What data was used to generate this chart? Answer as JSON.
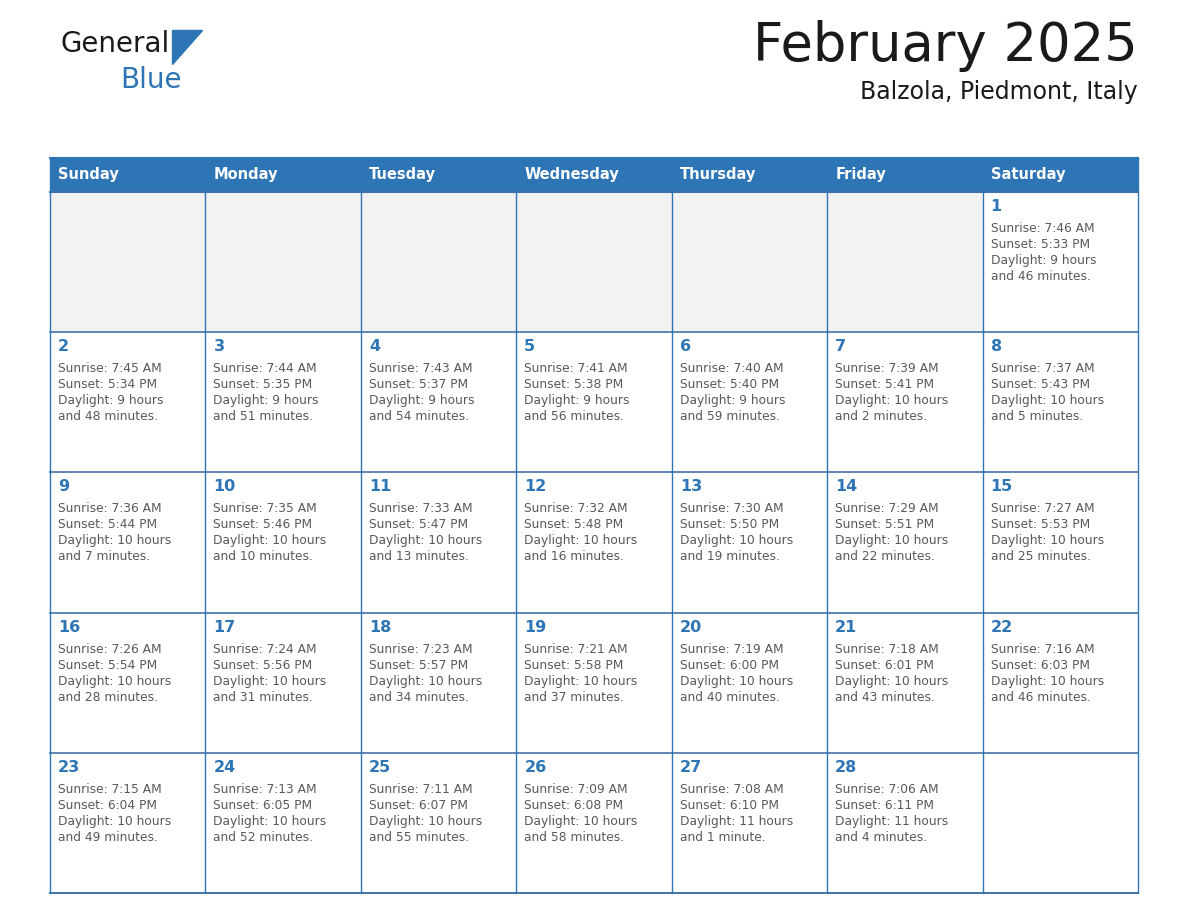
{
  "title": "February 2025",
  "subtitle": "Balzola, Piedmont, Italy",
  "header_bg": "#2E75B6",
  "header_text_color": "#FFFFFF",
  "days_of_week": [
    "Sunday",
    "Monday",
    "Tuesday",
    "Wednesday",
    "Thursday",
    "Friday",
    "Saturday"
  ],
  "cell_bg": "#FFFFFF",
  "border_color": "#2E75B6",
  "row_border_color": "#4472A8",
  "day_number_color": "#2E75B6",
  "info_text_color": "#595959",
  "logo_general_color": "#1A1A1A",
  "logo_blue_color": "#2E75B6",
  "calendar": [
    [
      null,
      null,
      null,
      null,
      null,
      null,
      {
        "day": 1,
        "sunrise": "7:46 AM",
        "sunset": "5:33 PM",
        "daylight": "9 hours and 46 minutes."
      }
    ],
    [
      {
        "day": 2,
        "sunrise": "7:45 AM",
        "sunset": "5:34 PM",
        "daylight": "9 hours and 48 minutes."
      },
      {
        "day": 3,
        "sunrise": "7:44 AM",
        "sunset": "5:35 PM",
        "daylight": "9 hours and 51 minutes."
      },
      {
        "day": 4,
        "sunrise": "7:43 AM",
        "sunset": "5:37 PM",
        "daylight": "9 hours and 54 minutes."
      },
      {
        "day": 5,
        "sunrise": "7:41 AM",
        "sunset": "5:38 PM",
        "daylight": "9 hours and 56 minutes."
      },
      {
        "day": 6,
        "sunrise": "7:40 AM",
        "sunset": "5:40 PM",
        "daylight": "9 hours and 59 minutes."
      },
      {
        "day": 7,
        "sunrise": "7:39 AM",
        "sunset": "5:41 PM",
        "daylight": "10 hours and 2 minutes."
      },
      {
        "day": 8,
        "sunrise": "7:37 AM",
        "sunset": "5:43 PM",
        "daylight": "10 hours and 5 minutes."
      }
    ],
    [
      {
        "day": 9,
        "sunrise": "7:36 AM",
        "sunset": "5:44 PM",
        "daylight": "10 hours and 7 minutes."
      },
      {
        "day": 10,
        "sunrise": "7:35 AM",
        "sunset": "5:46 PM",
        "daylight": "10 hours and 10 minutes."
      },
      {
        "day": 11,
        "sunrise": "7:33 AM",
        "sunset": "5:47 PM",
        "daylight": "10 hours and 13 minutes."
      },
      {
        "day": 12,
        "sunrise": "7:32 AM",
        "sunset": "5:48 PM",
        "daylight": "10 hours and 16 minutes."
      },
      {
        "day": 13,
        "sunrise": "7:30 AM",
        "sunset": "5:50 PM",
        "daylight": "10 hours and 19 minutes."
      },
      {
        "day": 14,
        "sunrise": "7:29 AM",
        "sunset": "5:51 PM",
        "daylight": "10 hours and 22 minutes."
      },
      {
        "day": 15,
        "sunrise": "7:27 AM",
        "sunset": "5:53 PM",
        "daylight": "10 hours and 25 minutes."
      }
    ],
    [
      {
        "day": 16,
        "sunrise": "7:26 AM",
        "sunset": "5:54 PM",
        "daylight": "10 hours and 28 minutes."
      },
      {
        "day": 17,
        "sunrise": "7:24 AM",
        "sunset": "5:56 PM",
        "daylight": "10 hours and 31 minutes."
      },
      {
        "day": 18,
        "sunrise": "7:23 AM",
        "sunset": "5:57 PM",
        "daylight": "10 hours and 34 minutes."
      },
      {
        "day": 19,
        "sunrise": "7:21 AM",
        "sunset": "5:58 PM",
        "daylight": "10 hours and 37 minutes."
      },
      {
        "day": 20,
        "sunrise": "7:19 AM",
        "sunset": "6:00 PM",
        "daylight": "10 hours and 40 minutes."
      },
      {
        "day": 21,
        "sunrise": "7:18 AM",
        "sunset": "6:01 PM",
        "daylight": "10 hours and 43 minutes."
      },
      {
        "day": 22,
        "sunrise": "7:16 AM",
        "sunset": "6:03 PM",
        "daylight": "10 hours and 46 minutes."
      }
    ],
    [
      {
        "day": 23,
        "sunrise": "7:15 AM",
        "sunset": "6:04 PM",
        "daylight": "10 hours and 49 minutes."
      },
      {
        "day": 24,
        "sunrise": "7:13 AM",
        "sunset": "6:05 PM",
        "daylight": "10 hours and 52 minutes."
      },
      {
        "day": 25,
        "sunrise": "7:11 AM",
        "sunset": "6:07 PM",
        "daylight": "10 hours and 55 minutes."
      },
      {
        "day": 26,
        "sunrise": "7:09 AM",
        "sunset": "6:08 PM",
        "daylight": "10 hours and 58 minutes."
      },
      {
        "day": 27,
        "sunrise": "7:08 AM",
        "sunset": "6:10 PM",
        "daylight": "11 hours and 1 minute."
      },
      {
        "day": 28,
        "sunrise": "7:06 AM",
        "sunset": "6:11 PM",
        "daylight": "11 hours and 4 minutes."
      },
      null
    ]
  ]
}
